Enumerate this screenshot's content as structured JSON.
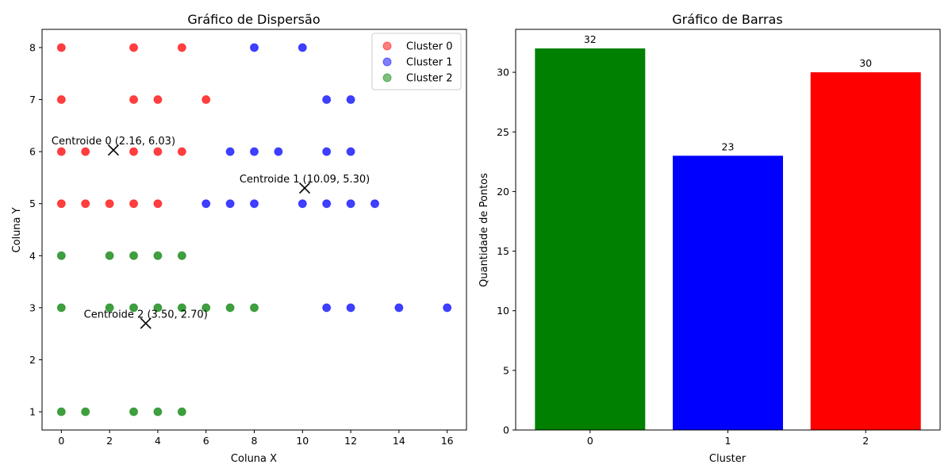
{
  "chart_data": [
    {
      "type": "scatter",
      "title": "Gráfico de Dispersão",
      "xlabel": "Coluna X",
      "ylabel": "Coluna Y",
      "xlim": [
        -0.8,
        16.8
      ],
      "ylim": [
        0.65,
        8.35
      ],
      "xticks": [
        0,
        2,
        4,
        6,
        8,
        10,
        12,
        14,
        16
      ],
      "yticks": [
        1,
        2,
        3,
        4,
        5,
        6,
        7,
        8
      ],
      "legend_position": "top-right",
      "grid": false,
      "series": [
        {
          "name": "Cluster 0",
          "color": "#ff0000",
          "points": [
            [
              0,
              8
            ],
            [
              3,
              8
            ],
            [
              5,
              8
            ],
            [
              0,
              7
            ],
            [
              3,
              7
            ],
            [
              4,
              7
            ],
            [
              6,
              7
            ],
            [
              0,
              6
            ],
            [
              1,
              6
            ],
            [
              3,
              6
            ],
            [
              4,
              6
            ],
            [
              5,
              6
            ],
            [
              0,
              5
            ],
            [
              1,
              5
            ],
            [
              2,
              5
            ],
            [
              3,
              5
            ],
            [
              4,
              5
            ]
          ]
        },
        {
          "name": "Cluster 1",
          "color": "#0000ff",
          "points": [
            [
              8,
              8
            ],
            [
              10,
              8
            ],
            [
              11,
              7
            ],
            [
              12,
              7
            ],
            [
              7,
              6
            ],
            [
              8,
              6
            ],
            [
              9,
              6
            ],
            [
              11,
              6
            ],
            [
              12,
              6
            ],
            [
              6,
              5
            ],
            [
              7,
              5
            ],
            [
              8,
              5
            ],
            [
              10,
              5
            ],
            [
              11,
              5
            ],
            [
              12,
              5
            ],
            [
              13,
              5
            ],
            [
              11,
              3
            ],
            [
              12,
              3
            ],
            [
              14,
              3
            ],
            [
              16,
              3
            ]
          ]
        },
        {
          "name": "Cluster 2",
          "color": "#008000",
          "points": [
            [
              0,
              4
            ],
            [
              2,
              4
            ],
            [
              3,
              4
            ],
            [
              4,
              4
            ],
            [
              5,
              4
            ],
            [
              0,
              3
            ],
            [
              2,
              3
            ],
            [
              3,
              3
            ],
            [
              4,
              3
            ],
            [
              5,
              3
            ],
            [
              6,
              3
            ],
            [
              7,
              3
            ],
            [
              8,
              3
            ],
            [
              0,
              1
            ],
            [
              1,
              1
            ],
            [
              3,
              1
            ],
            [
              4,
              1
            ],
            [
              5,
              1
            ]
          ]
        }
      ],
      "centroids": [
        {
          "x": 2.16,
          "y": 6.03,
          "label": "Centroide 0 (2.16, 6.03)"
        },
        {
          "x": 10.09,
          "y": 5.3,
          "label": "Centroide 1 (10.09, 5.30)"
        },
        {
          "x": 3.5,
          "y": 2.7,
          "label": "Centroide 2 (3.50, 2.70)"
        }
      ]
    },
    {
      "type": "bar",
      "title": "Gráfico de Barras",
      "xlabel": "Cluster",
      "ylabel": "Quantidade de Pontos",
      "categories": [
        "0",
        "1",
        "2"
      ],
      "values": [
        32,
        23,
        30
      ],
      "colors": [
        "#008000",
        "#0000ff",
        "#ff0000"
      ],
      "ylim": [
        0,
        33.6
      ],
      "yticks": [
        0,
        5,
        10,
        15,
        20,
        25,
        30
      ],
      "grid": false
    }
  ]
}
